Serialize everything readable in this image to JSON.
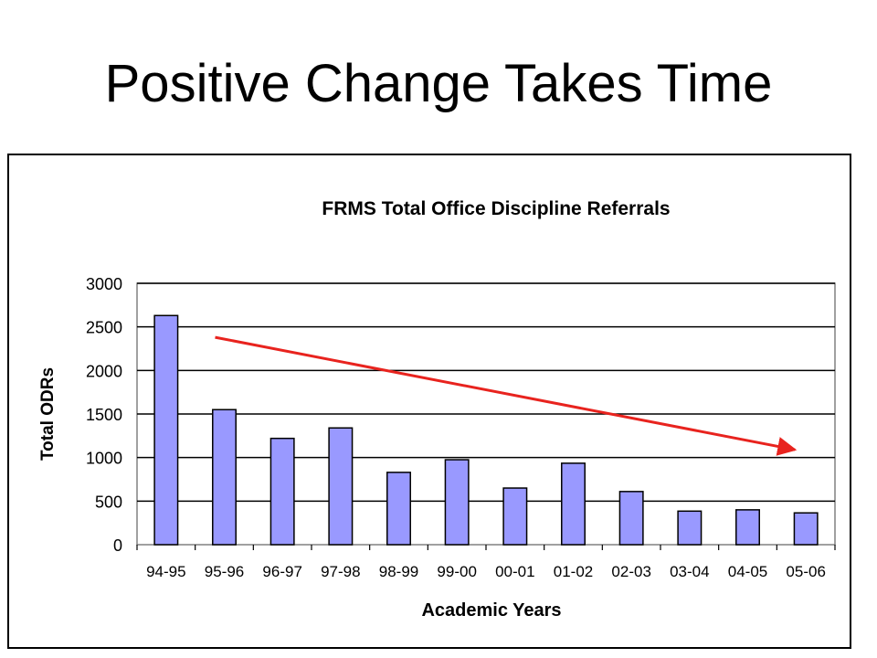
{
  "slide": {
    "title": "Positive Change Takes Time"
  },
  "colors": {
    "bar_fill": "#9999FF",
    "bar_stroke": "#000000",
    "trend_arrow": "#E8231E",
    "gridline": "#000000"
  },
  "chart_data": {
    "type": "bar",
    "title": "FRMS Total Office Discipline Referrals",
    "xlabel": "Academic Years",
    "ylabel": "Total ODRs",
    "ylim": [
      0,
      3000
    ],
    "yticks": [
      0,
      500,
      1000,
      1500,
      2000,
      2500,
      3000
    ],
    "grid": true,
    "legend": "none",
    "categories": [
      "94-95",
      "95-96",
      "96-97",
      "97-98",
      "98-99",
      "99-00",
      "00-01",
      "01-02",
      "02-03",
      "03-04",
      "04-05",
      "05-06"
    ],
    "values": [
      2630,
      1550,
      1220,
      1340,
      830,
      975,
      650,
      935,
      610,
      385,
      400,
      365
    ],
    "annotations": [
      {
        "type": "trend-arrow",
        "description": "downward trend arrow",
        "from": {
          "x": "95-96",
          "y": 2380
        },
        "to": {
          "x": "05-06",
          "y": 1090
        }
      }
    ]
  }
}
